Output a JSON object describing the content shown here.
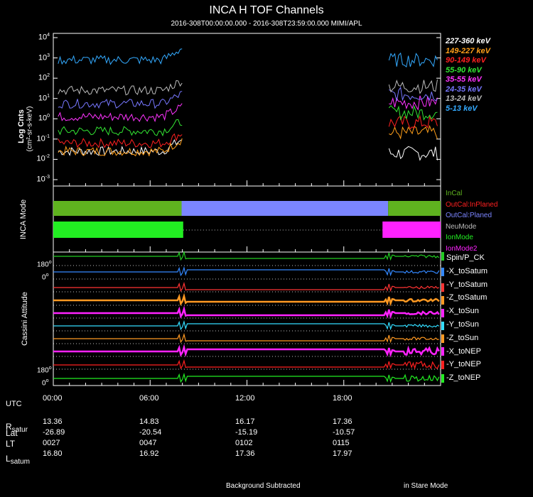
{
  "chart_data": [
    {
      "type": "line",
      "title": "INCA H TOF Channels",
      "subtitle": "2016-308T00:00:00.000 - 2016-308T23:59:00.000 MIMI/APL",
      "ylabel": "Log Cnts",
      "ylabel_units": "(cm²-sr-s-keV)",
      "yscale": "log",
      "ylim": [
        0.001,
        10000
      ],
      "xlim_hours": [
        0,
        24
      ],
      "yticks": [
        {
          "base": "10",
          "exp": "4"
        },
        {
          "base": "10",
          "exp": "3"
        },
        {
          "base": "10",
          "exp": "2"
        },
        {
          "base": "10",
          "exp": "1"
        },
        {
          "base": "10",
          "exp": "0"
        },
        {
          "base": "10",
          "exp": "-1"
        },
        {
          "base": "10",
          "exp": "-2"
        },
        {
          "base": "10",
          "exp": "-3"
        }
      ],
      "data_gap_hours": [
        8.0,
        20.8
      ],
      "series": [
        {
          "name": "227-360 keV",
          "color": "#ffffff",
          "level_before": -1.6,
          "level_after": -1.7,
          "rise": 0.6
        },
        {
          "name": "149-227 keV",
          "color": "#ff9f1a",
          "level_before": -1.6,
          "level_after": -0.7,
          "rise": 0.6
        },
        {
          "name": "90-149 keV",
          "color": "#ff2020",
          "level_before": -1.2,
          "level_after": -0.2,
          "rise": 0.5
        },
        {
          "name": "55-90 keV",
          "color": "#33e633",
          "level_before": -0.6,
          "level_after": 0.3,
          "rise": 0.5
        },
        {
          "name": "35-55 keV",
          "color": "#ff33ff",
          "level_before": 0.1,
          "level_after": 0.8,
          "rise": 0.5
        },
        {
          "name": "24-35 keV",
          "color": "#7777ff",
          "level_before": 0.75,
          "level_after": 1.2,
          "rise": 0.5
        },
        {
          "name": "13-24 keV",
          "color": "#bbbbbb",
          "level_before": 1.4,
          "level_after": 1.6,
          "rise": 0.5
        },
        {
          "name": "5-13 keV",
          "color": "#33aaff",
          "level_before": 2.9,
          "level_after": 2.9,
          "rise": 0.6
        }
      ]
    },
    {
      "type": "timeline",
      "ylabel": "INCA Mode",
      "legend": [
        {
          "name": "InCal",
          "color": "#5fb31f"
        },
        {
          "name": "OutCal:InPlaned",
          "color": "#ff2020"
        },
        {
          "name": "OutCal:Planed",
          "color": "#7b85ff"
        },
        {
          "name": "NeuMode",
          "color": "#bbbbbb"
        },
        {
          "name": "IonMode",
          "color": "#22ee22"
        },
        {
          "name": "IonMode2",
          "color": "#ff22ff"
        }
      ],
      "calibration_bar": [
        {
          "start": 0,
          "end": 7.95,
          "state": "InCal"
        },
        {
          "start": 7.95,
          "end": 20.75,
          "state": "OutCal:Planed"
        },
        {
          "start": 20.75,
          "end": 24,
          "state": "InCal"
        }
      ],
      "mode_bar": [
        {
          "start": 0,
          "end": 8.05,
          "state": "IonMode"
        },
        {
          "start": 8.05,
          "end": 20.4,
          "state": "NeuMode"
        },
        {
          "start": 20.4,
          "end": 24,
          "state": "IonMode2"
        }
      ]
    },
    {
      "type": "line",
      "ylabel": "Cassini Attitude",
      "top_tick": {
        "base": "180",
        "exp": "o"
      },
      "zero_tick": {
        "base": "0",
        "exp": "o"
      },
      "bottom_top_tick": {
        "base": "180",
        "exp": "o"
      },
      "bottom_zero_tick": {
        "base": "0",
        "exp": "o"
      },
      "series": [
        {
          "name": "Spin/P_CK",
          "color": "#22cc22"
        },
        {
          "name": "-X_toSatum",
          "color": "#3388ff"
        },
        {
          "name": "-Y_toSatum",
          "color": "#ff3333"
        },
        {
          "name": "-Z_toSatum",
          "color": "#ff9922"
        },
        {
          "name": "-X_toSun",
          "color": "#ff22ff"
        },
        {
          "name": "-Y_toSun",
          "color": "#33ddff"
        },
        {
          "name": "-Z_toSun",
          "color": "#ff9922"
        },
        {
          "name": "-X_toNEP",
          "color": "#ff22ff"
        },
        {
          "name": "-Y_toNEP",
          "color": "#ff2020"
        },
        {
          "name": "-Z_toNEP",
          "color": "#22ee22"
        }
      ]
    }
  ],
  "ephemeris": {
    "utc_label": "UTC",
    "times": [
      "00:00",
      "06:00",
      "12:00",
      "18:00"
    ],
    "rows": [
      {
        "label": "R",
        "sub": "satur",
        "values": [
          "13.36",
          "14.83",
          "16.17",
          "17.36"
        ]
      },
      {
        "label": "Lat",
        "sub": "",
        "values": [
          "-26.89",
          "-20.54",
          "-15.19",
          "-10.57"
        ]
      },
      {
        "label": "LT",
        "sub": "",
        "values": [
          "0027",
          "0047",
          "0102",
          "0115"
        ]
      },
      {
        "label": "L",
        "sub": "satum",
        "values": [
          "16.80",
          "16.92",
          "17.36",
          "17.97"
        ]
      }
    ]
  },
  "footer": {
    "left": "Background Subtracted",
    "right": "in Stare Mode"
  }
}
